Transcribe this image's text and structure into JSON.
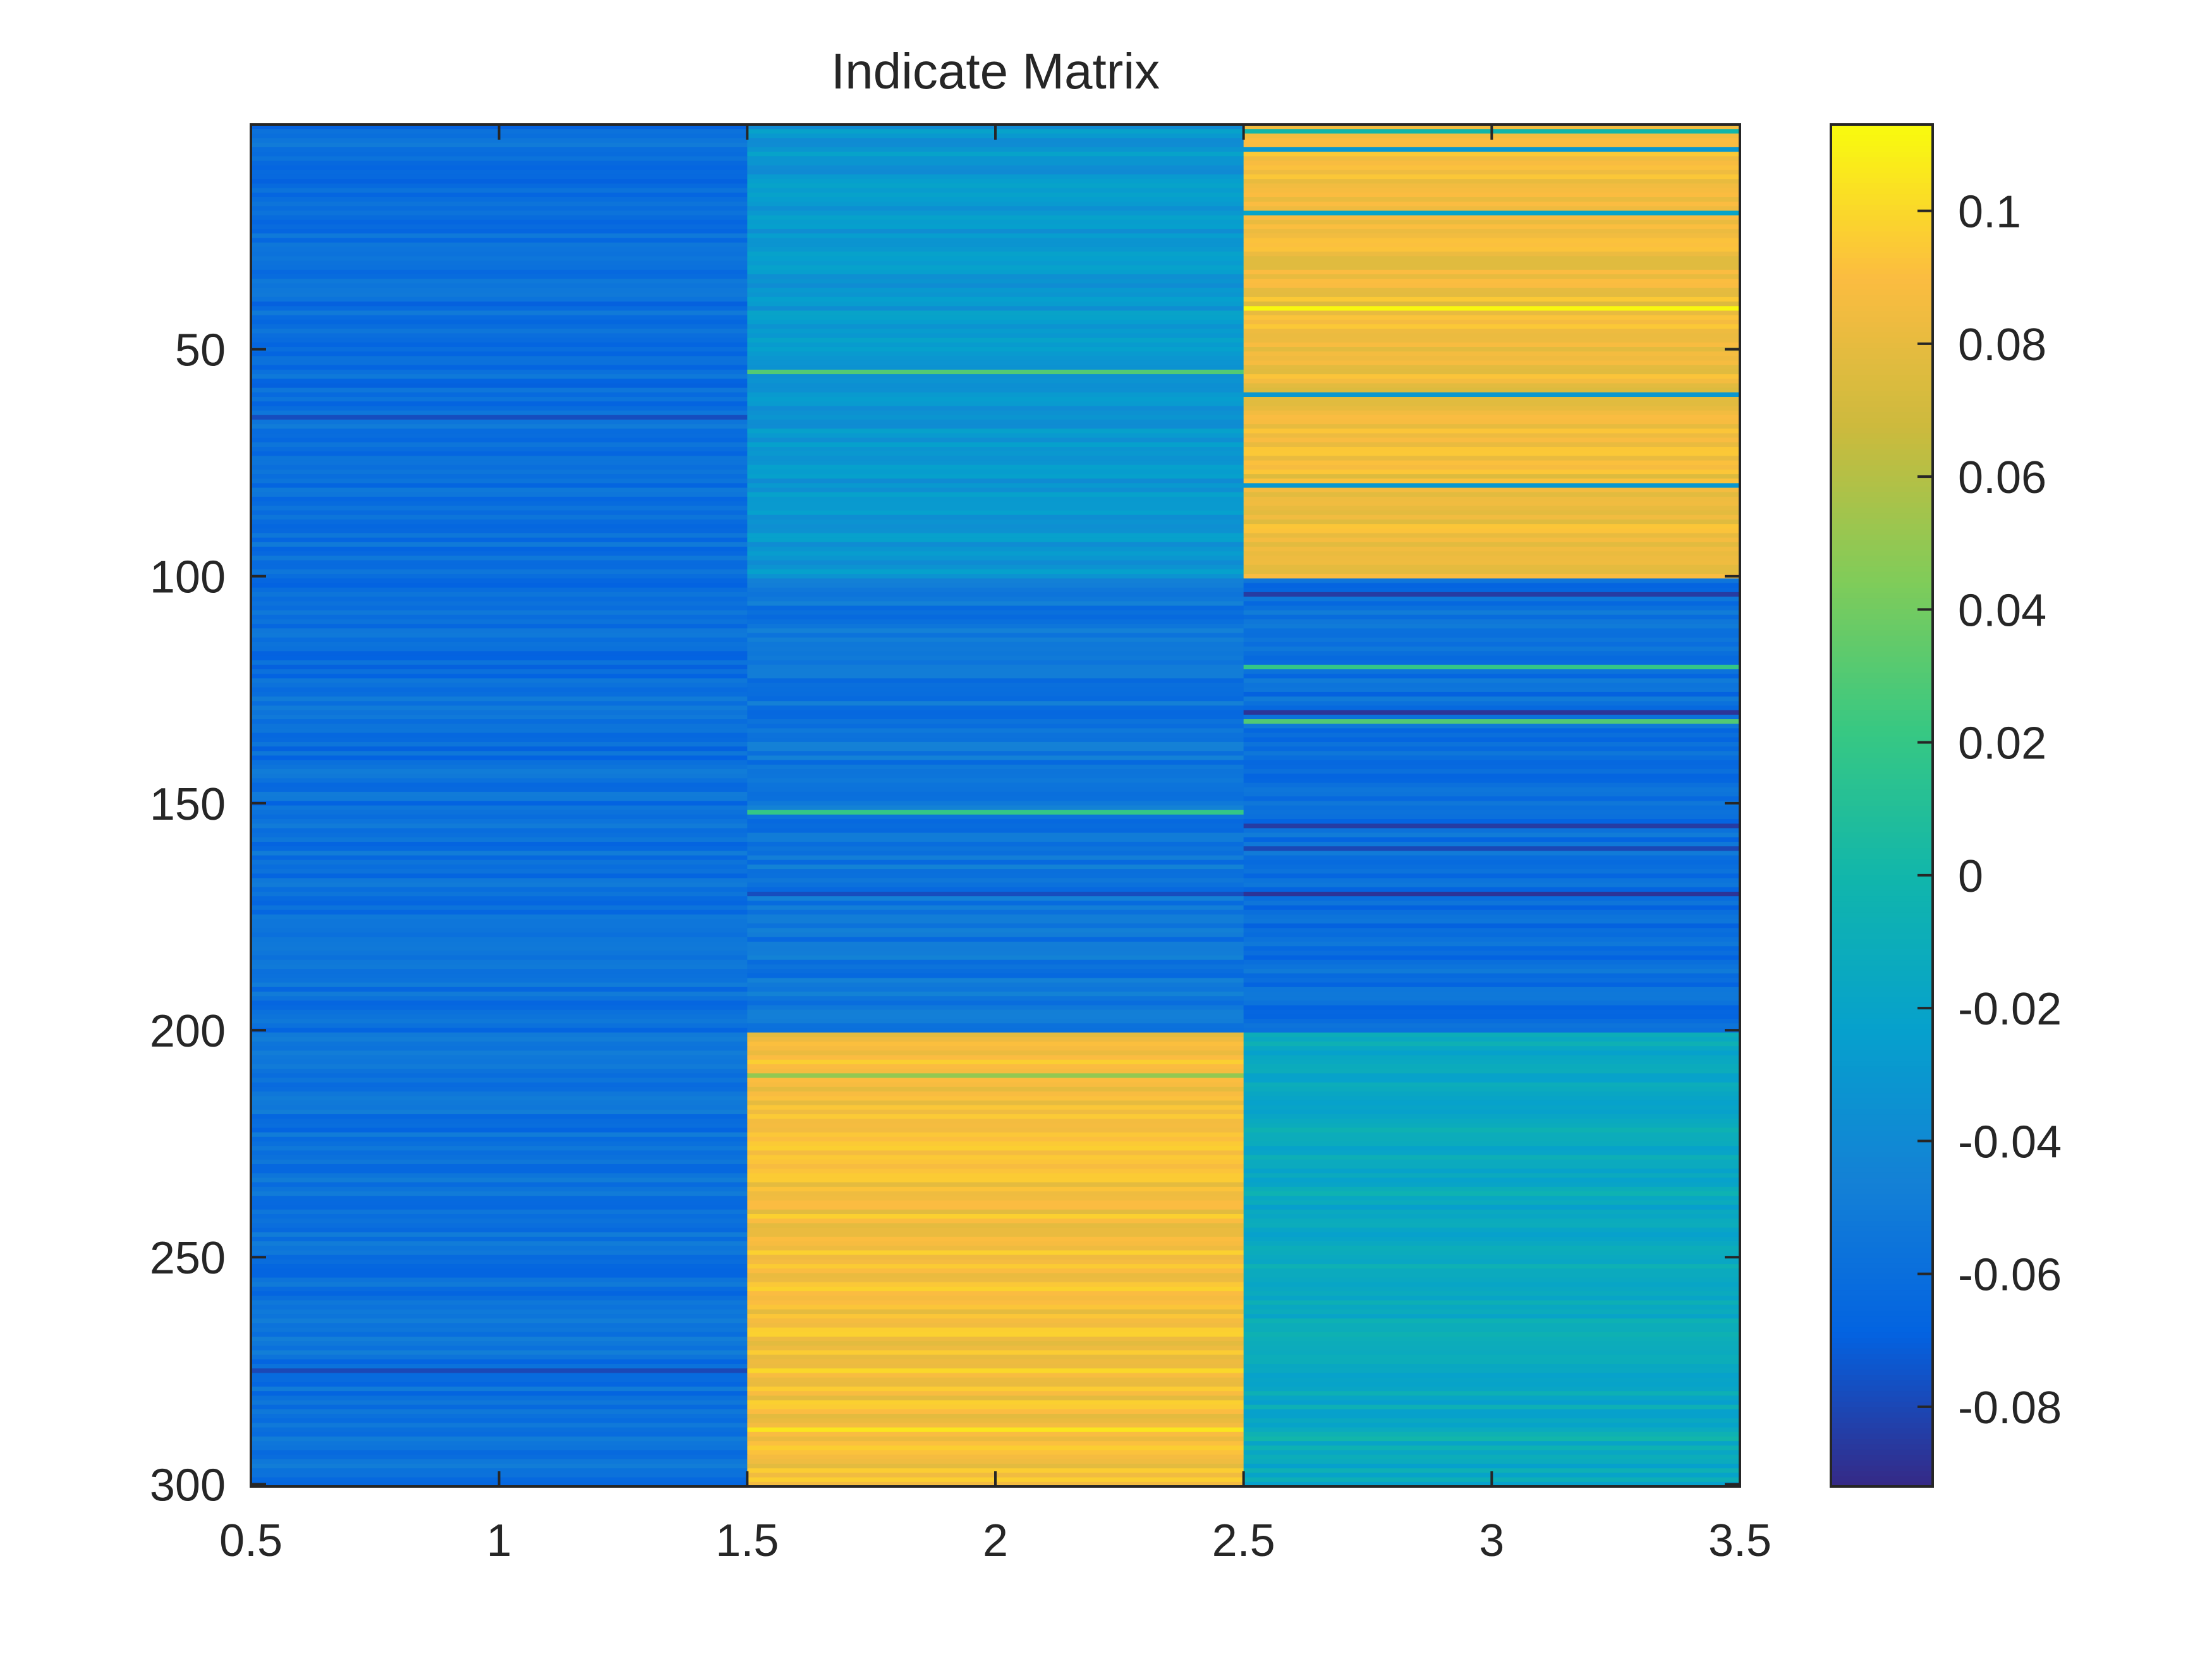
{
  "chart_data": {
    "type": "heatmap",
    "title": "Indicate Matrix",
    "xlabel": "",
    "ylabel": "",
    "x_range": [
      0.5,
      3.5
    ],
    "y_range": [
      0.5,
      300.5
    ],
    "y_reversed": true,
    "x_ticks": [
      0.5,
      1,
      1.5,
      2,
      2.5,
      3,
      3.5
    ],
    "x_tick_labels": [
      "0.5",
      "1",
      "1.5",
      "2",
      "2.5",
      "3",
      "3.5"
    ],
    "y_ticks": [
      50,
      100,
      150,
      200,
      250,
      300
    ],
    "y_tick_labels": [
      "50",
      "100",
      "150",
      "200",
      "250",
      "300"
    ],
    "columns": [
      1,
      2,
      3
    ],
    "rows": 300,
    "value_range": [
      -0.092,
      0.113
    ],
    "colormap": "parula",
    "colorbar": {
      "ticks": [
        -0.08,
        -0.06,
        -0.04,
        -0.02,
        0,
        0.02,
        0.04,
        0.06,
        0.08,
        0.1
      ],
      "tick_labels": [
        "-0.08",
        "-0.06",
        "-0.04",
        "-0.02",
        "0",
        "0.02",
        "0.04",
        "0.06",
        "0.08",
        "0.1"
      ],
      "placement": "right"
    },
    "row_blocks": [
      {
        "rows": [
          1,
          100
        ],
        "col1": -0.06,
        "col2": -0.03,
        "col3": 0.085
      },
      {
        "rows": [
          101,
          200
        ],
        "col1": -0.06,
        "col2": -0.055,
        "col3": -0.06
      },
      {
        "rows": [
          201,
          300
        ],
        "col1": -0.058,
        "col2": 0.088,
        "col3": -0.015
      }
    ],
    "row_variation": 0.01,
    "highlight_rows": [
      {
        "row": 2,
        "col": 3,
        "value": 0.0
      },
      {
        "row": 6,
        "col": 3,
        "value": -0.03
      },
      {
        "row": 20,
        "col": 3,
        "value": -0.02
      },
      {
        "row": 41,
        "col": 3,
        "value": 0.112
      },
      {
        "row": 55,
        "col": 2,
        "value": 0.03
      },
      {
        "row": 60,
        "col": 3,
        "value": -0.03
      },
      {
        "row": 65,
        "col": 1,
        "value": -0.078
      },
      {
        "row": 80,
        "col": 3,
        "value": -0.03
      },
      {
        "row": 104,
        "col": 3,
        "value": -0.085
      },
      {
        "row": 120,
        "col": 3,
        "value": 0.02
      },
      {
        "row": 130,
        "col": 3,
        "value": -0.088
      },
      {
        "row": 132,
        "col": 3,
        "value": 0.03
      },
      {
        "row": 152,
        "col": 2,
        "value": 0.02
      },
      {
        "row": 155,
        "col": 3,
        "value": -0.085
      },
      {
        "row": 160,
        "col": 3,
        "value": -0.08
      },
      {
        "row": 170,
        "col": 2,
        "value": -0.078
      },
      {
        "row": 170,
        "col": 3,
        "value": -0.088
      },
      {
        "row": 210,
        "col": 2,
        "value": 0.05
      },
      {
        "row": 275,
        "col": 1,
        "value": -0.08
      },
      {
        "row": 275,
        "col": 2,
        "value": 0.1
      },
      {
        "row": 288,
        "col": 2,
        "value": 0.105
      },
      {
        "row": 290,
        "col": 3,
        "value": 0.0
      }
    ]
  }
}
